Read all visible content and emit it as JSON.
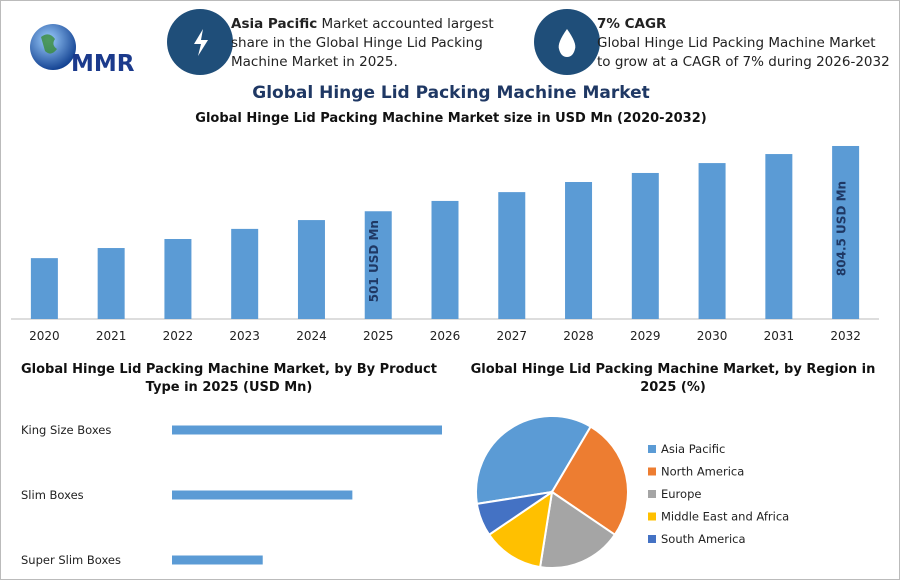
{
  "header": {
    "logo": "MMR",
    "info": [
      {
        "highlight": "Asia Pacific",
        "text": "Market accounted largest share in the Global Hinge Lid Packing Machine Market in 2025."
      },
      {
        "highlight": "7% CAGR",
        "text": "Global Hinge Lid Packing Machine Market to grow at a CAGR of 7% during 2026-2032"
      }
    ]
  },
  "title": "Global Hinge Lid Packing Machine Market",
  "chart_data": [
    {
      "type": "bar",
      "orientation": "vertical",
      "title": "Global Hinge Lid Packing Machine Market size in USD Mn (2020-2032)",
      "categories": [
        "2020",
        "2021",
        "2022",
        "2023",
        "2024",
        "2025",
        "2026",
        "2027",
        "2028",
        "2029",
        "2030",
        "2031",
        "2032"
      ],
      "values": [
        283,
        330,
        372,
        419,
        460,
        501,
        549,
        590,
        637,
        679,
        725,
        767,
        804.5
      ],
      "value_labels": [
        null,
        null,
        null,
        null,
        null,
        "501 USD Mn",
        null,
        null,
        null,
        null,
        null,
        null,
        "804.5 USD Mn"
      ],
      "color": "#5b9bd5",
      "ylim": [
        0,
        830
      ]
    },
    {
      "type": "bar",
      "orientation": "horizontal",
      "title": "Global Hinge Lid Packing Machine Market, by By Product Type in 2025 (USD Mn)",
      "categories": [
        "King Size Boxes",
        "Slim Boxes",
        "Super Slim Boxes"
      ],
      "values": [
        250,
        167,
        84
      ],
      "color": "#5b9bd5",
      "xlim": [
        0,
        250
      ]
    },
    {
      "type": "pie",
      "title": "Global Hinge Lid Packing Machine Market, by Region in 2025 (%)",
      "categories": [
        "Asia Pacific",
        "North America",
        "Europe",
        "Middle East and Africa",
        "South America"
      ],
      "values": [
        36,
        26,
        18,
        13,
        7
      ],
      "colors": [
        "#5b9bd5",
        "#ed7d31",
        "#a5a5a5",
        "#ffc000",
        "#4472c4"
      ],
      "legend": "right"
    }
  ]
}
